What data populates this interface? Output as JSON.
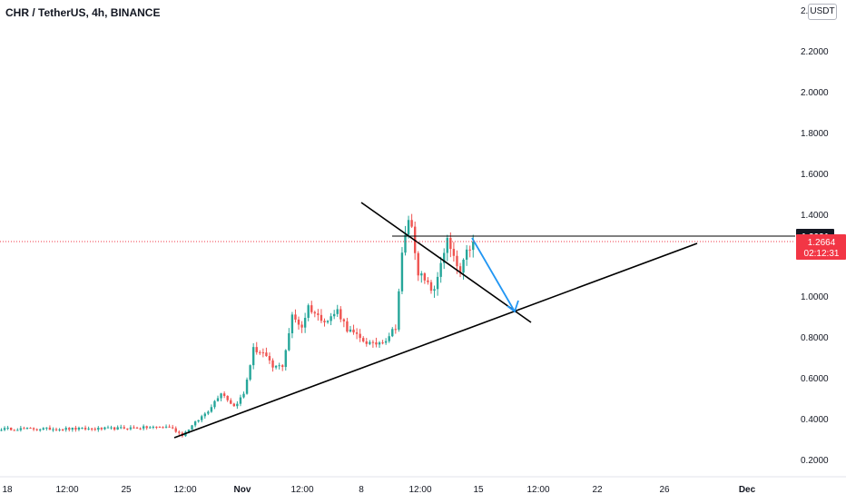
{
  "header": {
    "symbol_title": "CHR / TetherUS, 4h, BINANCE",
    "currency_badge": "USDT"
  },
  "price_axis": {
    "ticks": [
      "2.4000",
      "2.2000",
      "2.0000",
      "1.8000",
      "1.6000",
      "1.4000",
      "1.2000",
      "1.0000",
      "0.8000",
      "0.6000",
      "0.4000",
      "0.2000"
    ],
    "tick_values": [
      2.4,
      2.2,
      2.0,
      1.8,
      1.6,
      1.4,
      1.2,
      1.0,
      0.8,
      0.6,
      0.4,
      0.2
    ]
  },
  "time_axis": {
    "labels": [
      "18",
      "12:00",
      "25",
      "12:00",
      "Nov",
      "12:00",
      "8",
      "12:00",
      "15",
      "12:00",
      "22",
      "26",
      "Dec"
    ],
    "bold_labels": [
      "Nov",
      "Dec"
    ]
  },
  "price_labels": {
    "horizontal_level": "1.2931",
    "last_price": "1.2664",
    "countdown": "02:12:31"
  },
  "colors": {
    "up": "#26a69a",
    "down": "#ef5350",
    "last_price": "#f23645",
    "drawing_line": "#000000",
    "projection_arrow": "#2196f3",
    "axis_text": "#131722"
  },
  "chart_data": {
    "type": "candlestick",
    "title": "CHR / TetherUS, 4h, BINANCE",
    "currency": "USDT",
    "interval": "4h",
    "ylim": [
      0.15,
      2.45
    ],
    "grid": false,
    "price_trend_anchors": [
      {
        "index": 0,
        "price": 0.35
      },
      {
        "index": 30,
        "price": 0.35
      },
      {
        "index": 52,
        "price": 0.36
      },
      {
        "index": 56,
        "price": 0.32
      },
      {
        "index": 60,
        "price": 0.38
      },
      {
        "index": 64,
        "price": 0.44
      },
      {
        "index": 68,
        "price": 0.53
      },
      {
        "index": 72,
        "price": 0.46
      },
      {
        "index": 75,
        "price": 0.52
      },
      {
        "index": 78,
        "price": 0.74
      },
      {
        "index": 81,
        "price": 0.72
      },
      {
        "index": 84,
        "price": 0.65
      },
      {
        "index": 87,
        "price": 0.66
      },
      {
        "index": 90,
        "price": 0.9
      },
      {
        "index": 93,
        "price": 0.85
      },
      {
        "index": 95,
        "price": 0.95
      },
      {
        "index": 98,
        "price": 0.9
      },
      {
        "index": 101,
        "price": 0.88
      },
      {
        "index": 104,
        "price": 0.93
      },
      {
        "index": 107,
        "price": 0.84
      },
      {
        "index": 111,
        "price": 0.79
      },
      {
        "index": 115,
        "price": 0.76
      },
      {
        "index": 119,
        "price": 0.79
      },
      {
        "index": 122,
        "price": 0.85
      },
      {
        "index": 124,
        "price": 1.2
      },
      {
        "index": 126,
        "price": 1.38
      },
      {
        "index": 127,
        "price": 1.33
      },
      {
        "index": 129,
        "price": 1.12
      },
      {
        "index": 131,
        "price": 1.07
      },
      {
        "index": 134,
        "price": 1.02
      },
      {
        "index": 136,
        "price": 1.17
      },
      {
        "index": 138,
        "price": 1.27
      },
      {
        "index": 140,
        "price": 1.18
      },
      {
        "index": 142,
        "price": 1.11
      },
      {
        "index": 144,
        "price": 1.21
      },
      {
        "index": 146,
        "price": 1.2664
      }
    ],
    "horizontal_level": 1.2931,
    "last_price": 1.2664,
    "drawings": [
      {
        "name": "ascending-trendline",
        "type": "trendline"
      },
      {
        "name": "descending-trendline",
        "type": "trendline"
      },
      {
        "name": "horizontal-resistance-line",
        "type": "horizontal",
        "price": 1.2931
      },
      {
        "name": "projection-arrow",
        "type": "arrow"
      }
    ]
  }
}
